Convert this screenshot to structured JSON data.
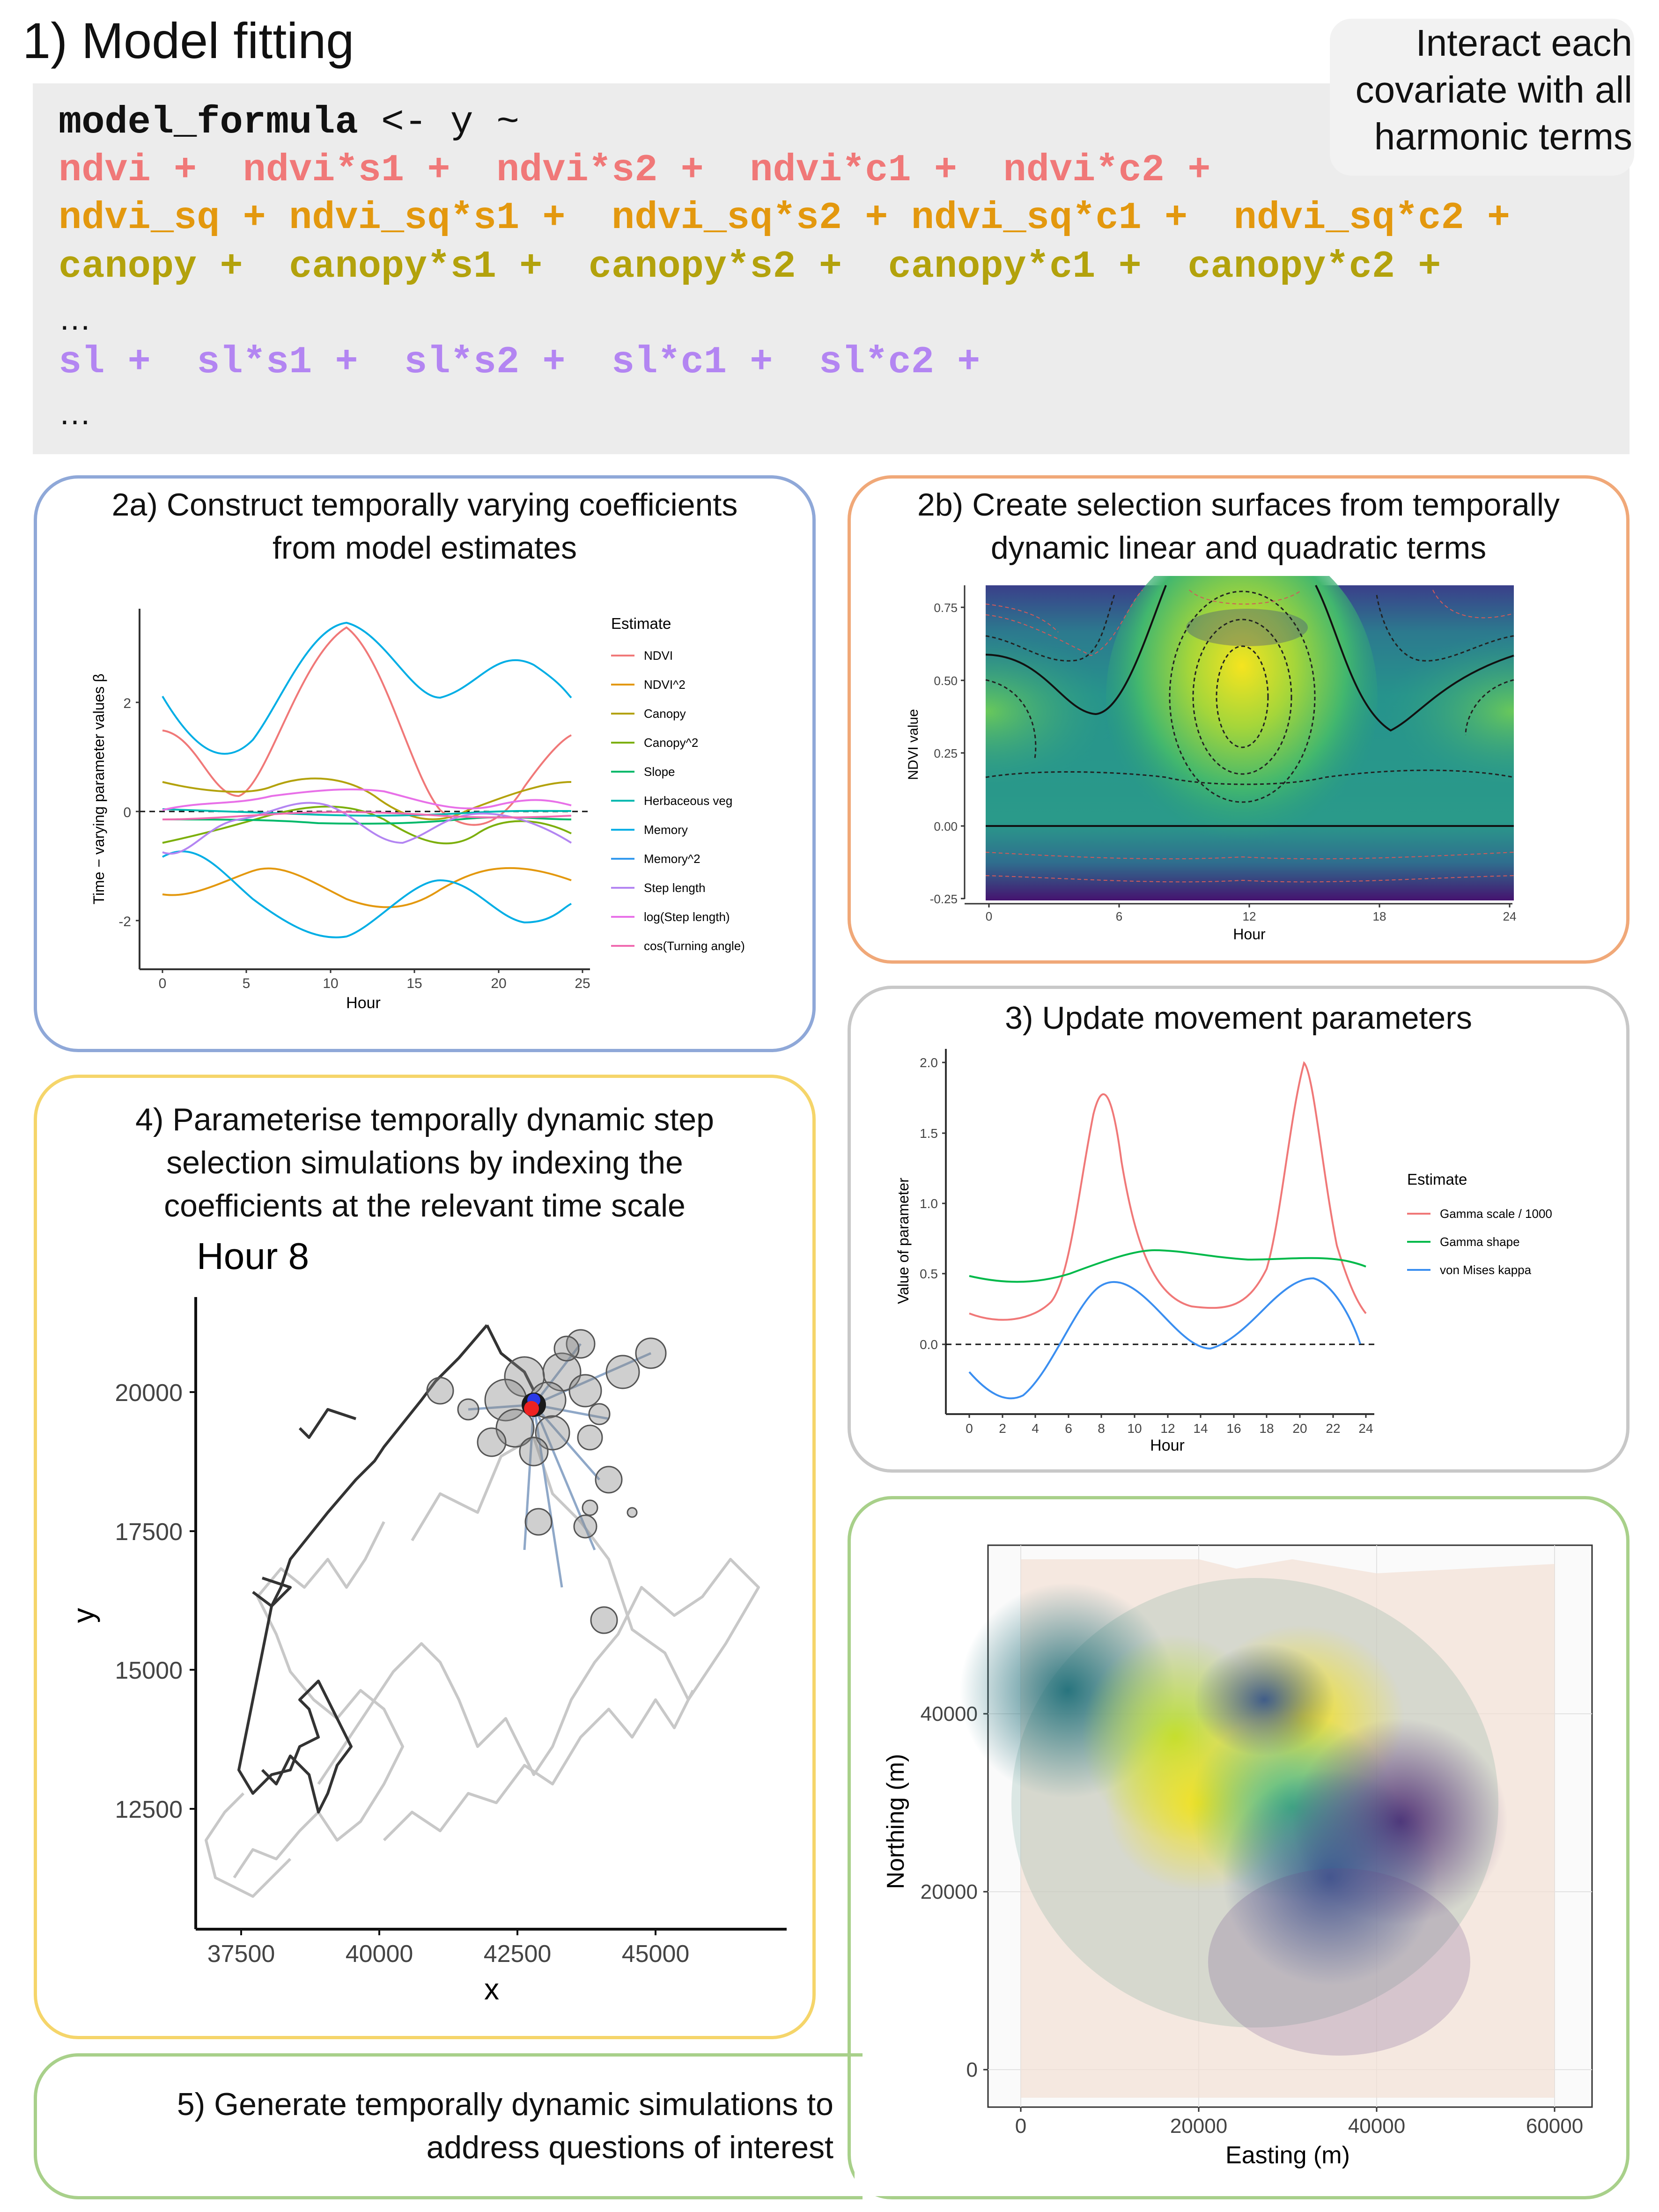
{
  "title": "1) Model fitting",
  "note": "Interact each covariate with all harmonic terms",
  "code": {
    "line0_kw": "model_formula",
    "line0_rest": " <- y ~",
    "line1": "ndvi +  ndvi*s1 +  ndvi*s2 +  ndvi*c1 +  ndvi*c2 +",
    "line2": "ndvi_sq + ndvi_sq*s1 +  ndvi_sq*s2 + ndvi_sq*c1 +  ndvi_sq*c2 +",
    "line3": "canopy +  canopy*s1 +  canopy*s2 +  canopy*c1 +  canopy*c2 +",
    "ellipsis": "…",
    "line4": "sl +  sl*s1 +  sl*s2 +  sl*c1 +  sl*c2 +"
  },
  "colors": {
    "ndvi": "#f07878",
    "ndvi_sq": "#e3980e",
    "canopy": "#b3a20c",
    "sl": "#b385f2",
    "blue_panel": "#8fa8d8",
    "orange_panel": "#f0a878",
    "gray_panel": "#c8c8c8",
    "yellow_panel": "#f5d56a",
    "green_panel": "#a8d08a"
  },
  "panel2a": {
    "title_l1": "2a) Construct temporally varying coefficients",
    "title_l2": "from model estimates",
    "ylabel": "Time − varying parameter values β",
    "xlabel": "Hour",
    "xticks": [
      "0",
      "5",
      "10",
      "15",
      "20",
      "25"
    ],
    "yticks": [
      "2",
      "0",
      "-2"
    ],
    "legend_title": "Estimate",
    "legend": [
      "NDVI",
      "NDVI^2",
      "Canopy",
      "Canopy^2",
      "Slope",
      "Herbaceous veg",
      "Memory",
      "Memory^2",
      "Step length",
      "log(Step length)",
      "cos(Turning angle)"
    ]
  },
  "panel2b": {
    "title_l1": "2b) Create selection surfaces from temporally",
    "title_l2": "dynamic linear and quadratic terms",
    "ylabel": "NDVI value",
    "xlabel": "Hour",
    "xticks": [
      "0",
      "6",
      "12",
      "18",
      "24"
    ],
    "yticks": [
      "0.75",
      "0.50",
      "0.25",
      "0.00",
      "-0.25"
    ]
  },
  "panel3": {
    "title": "3) Update movement parameters",
    "ylabel": "Value of parameter",
    "xlabel": "Hour",
    "xticks": [
      "0",
      "2",
      "4",
      "6",
      "8",
      "10",
      "12",
      "14",
      "16",
      "18",
      "20",
      "22",
      "24"
    ],
    "yticks": [
      "2.0",
      "1.5",
      "1.0",
      "0.5",
      "0.0"
    ],
    "legend_title": "Estimate",
    "legend": [
      "Gamma scale / 1000",
      "Gamma shape",
      "von Mises kappa"
    ]
  },
  "panel4": {
    "title_l1": "4) Parameterise temporally dynamic step",
    "title_l2": "selection simulations by indexing the",
    "title_l3": "coefficients at the relevant time scale",
    "plot_title": "Hour 8",
    "xlabel": "x",
    "ylabel": "y",
    "xticks": [
      "37500",
      "40000",
      "42500",
      "45000"
    ],
    "yticks": [
      "20000",
      "17500",
      "15000",
      "12500"
    ]
  },
  "panel5": {
    "title_l1": "5) Generate temporally dynamic simulations to",
    "title_l2": "address questions of interest",
    "xlabel": "Easting (m)",
    "ylabel": "Northing (m)",
    "xticks": [
      "0",
      "20000",
      "40000",
      "60000"
    ],
    "yticks": [
      "40000",
      "20000",
      "0"
    ]
  }
}
